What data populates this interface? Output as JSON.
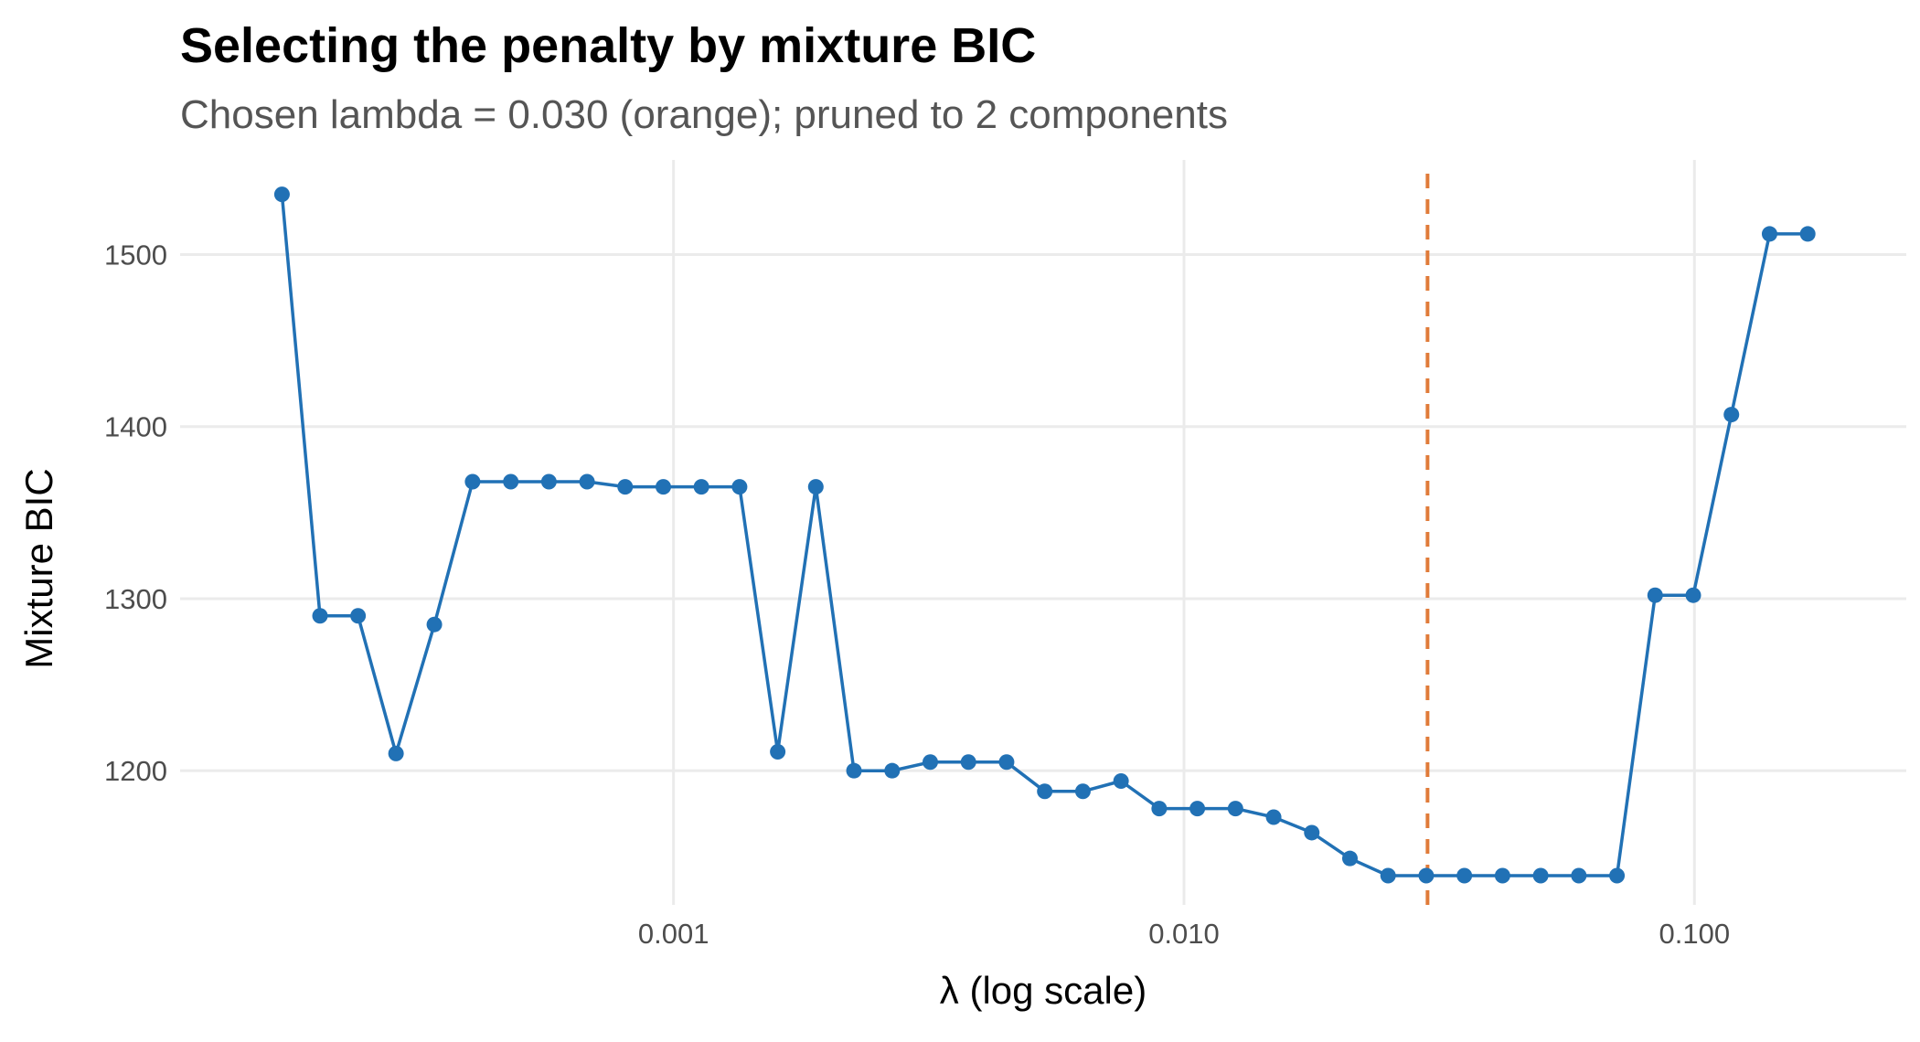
{
  "chart_data": {
    "type": "line",
    "title": "Selecting the penalty by mixture BIC",
    "subtitle": "Chosen lambda = 0.030 (orange); pruned to 2 components",
    "xlabel": "λ (log scale)",
    "ylabel": "Mixture BIC",
    "x_scale": "log10",
    "xlim": [
      0.000108,
      0.26
    ],
    "ylim": [
      1122,
      1555
    ],
    "x_ticks": [
      0.001,
      0.01,
      0.1
    ],
    "x_tick_labels": [
      "0.001",
      "0.010",
      "0.100"
    ],
    "y_ticks": [
      1200,
      1300,
      1400,
      1500
    ],
    "y_tick_labels": [
      "1200",
      "1300",
      "1400",
      "1500"
    ],
    "grid": true,
    "legend": "none",
    "series_color": "#2171b5",
    "chosen_color": "#e07b39",
    "chosen_lambda": 0.03,
    "series": [
      {
        "x": [
          0.000171,
          0.000203,
          0.000241,
          0.000286,
          0.00034,
          0.000404,
          0.00048,
          0.00057,
          0.000677,
          0.000804,
          0.000955,
          0.001134,
          0.001347,
          0.0016,
          0.0019,
          0.002257,
          0.002681,
          0.003184,
          0.003782,
          0.004492,
          0.005336,
          0.006338,
          0.007528,
          0.008942,
          0.010621,
          0.012615,
          0.014984,
          0.017797,
          0.021139,
          0.025108,
          0.029823,
          0.035423,
          0.042074,
          0.049975,
          0.059359,
          0.070505,
          0.083744,
          0.099469,
          0.118146,
          0.140331,
          0.166681
        ],
        "y": [
          1535,
          1290,
          1290,
          1210,
          1285,
          1368,
          1368,
          1368,
          1368,
          1365,
          1365,
          1365,
          1365,
          1211,
          1365,
          1200,
          1200,
          1205,
          1205,
          1205,
          1188,
          1188,
          1194,
          1178,
          1178,
          1178,
          1173,
          1164,
          1149,
          1139,
          1139,
          1139,
          1139,
          1139,
          1139,
          1139,
          1302,
          1302,
          1407,
          1512,
          1512
        ]
      }
    ]
  }
}
